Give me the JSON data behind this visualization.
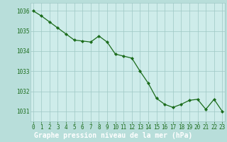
{
  "x": [
    0,
    1,
    2,
    3,
    4,
    5,
    6,
    7,
    8,
    9,
    10,
    11,
    12,
    13,
    14,
    15,
    16,
    17,
    18,
    19,
    20,
    21,
    22,
    23
  ],
  "y": [
    1036.0,
    1035.75,
    1035.45,
    1035.15,
    1034.85,
    1034.55,
    1034.5,
    1034.45,
    1034.75,
    1034.45,
    1033.85,
    1033.75,
    1033.65,
    1033.0,
    1032.4,
    1031.65,
    1031.35,
    1031.2,
    1031.35,
    1031.55,
    1031.6,
    1031.1,
    1031.6,
    1031.0
  ],
  "line_color": "#1a6b1a",
  "marker_color": "#1a6b1a",
  "bg_plot": "#ceecea",
  "bg_fig": "#b8deda",
  "bg_xlabel_strip": "#2d6e2d",
  "grid_color": "#9ec8c4",
  "label_color": "#1a6b1a",
  "xlabel_strip_color": "#d4f0ed",
  "xlabel": "Graphe pression niveau de la mer (hPa)",
  "ylim": [
    1030.5,
    1036.4
  ],
  "yticks": [
    1031,
    1032,
    1033,
    1034,
    1035,
    1036
  ],
  "xticks": [
    0,
    1,
    2,
    3,
    4,
    5,
    6,
    7,
    8,
    9,
    10,
    11,
    12,
    13,
    14,
    15,
    16,
    17,
    18,
    19,
    20,
    21,
    22,
    23
  ],
  "tick_fontsize": 5.5,
  "xlabel_fontsize": 7.0,
  "ytick_fontsize": 5.5
}
